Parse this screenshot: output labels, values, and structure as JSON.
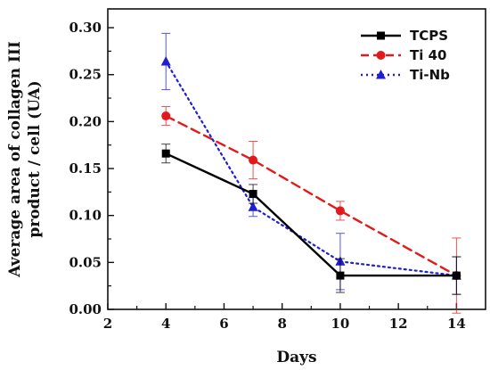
{
  "chart_data": {
    "type": "line",
    "x_label": "Days",
    "y_label_lines": [
      "Average area of collagen III",
      "product / cell (UA)"
    ],
    "x_lim": [
      2,
      15
    ],
    "y_lim": [
      0,
      0.32
    ],
    "x_ticks": [
      2,
      4,
      6,
      8,
      10,
      12,
      14
    ],
    "x_tick_labels": [
      "2",
      "4",
      "6",
      "8",
      "10",
      "12",
      "14"
    ],
    "y_ticks": [
      0.0,
      0.05,
      0.1,
      0.15,
      0.2,
      0.25,
      0.3
    ],
    "y_tick_labels": [
      "0.00",
      "0.05",
      "0.10",
      "0.15",
      "0.20",
      "0.25",
      "0.30"
    ],
    "grid": false,
    "legend_position": "top-right",
    "series": [
      {
        "name": "TCPS",
        "color": "#000000",
        "line_style": "solid",
        "marker": "square",
        "x": [
          4,
          7,
          10,
          14
        ],
        "y": [
          0.166,
          0.123,
          0.036,
          0.036
        ],
        "err": [
          0.01,
          0.01,
          0.018,
          0.02
        ]
      },
      {
        "name": "Ti 40",
        "color": "#e31a1c",
        "line_style": "dashed",
        "marker": "circle",
        "x": [
          4,
          7,
          10,
          14
        ],
        "y": [
          0.206,
          0.159,
          0.105,
          0.036
        ],
        "err": [
          0.01,
          0.02,
          0.01,
          0.04
        ]
      },
      {
        "name": "Ti-Nb",
        "color": "#1f1fd1",
        "line_style": "dotted",
        "marker": "triangle",
        "x": [
          4,
          7,
          10,
          14
        ],
        "y": [
          0.264,
          0.109,
          0.051,
          0.036
        ],
        "err": [
          0.03,
          0.01,
          0.03,
          0.02
        ]
      }
    ]
  }
}
